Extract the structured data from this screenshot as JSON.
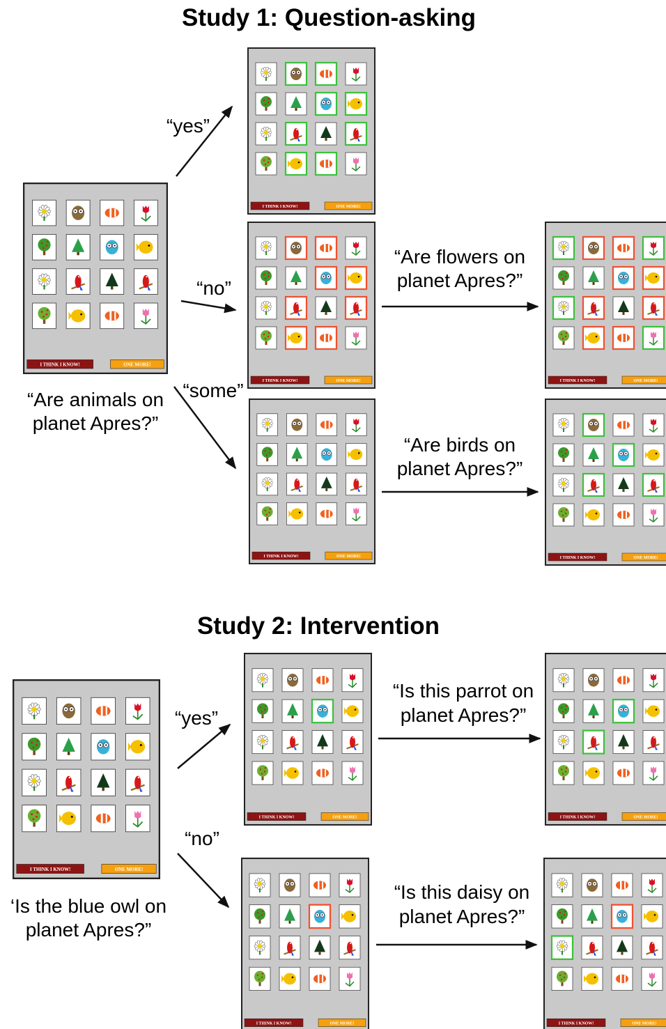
{
  "study1": {
    "title": "Study 1: Question-asking",
    "question": [
      "“Are animals on",
      "planet Apres?”"
    ],
    "branches": [
      "“yes”",
      "“no”",
      "“some”"
    ],
    "followups": [
      [
        "“Are flowers on",
        "planet Apres?”"
      ],
      [
        "“Are birds on",
        "planet Apres?”"
      ]
    ]
  },
  "study2": {
    "title": "Study 2: Intervention",
    "question": [
      "‘Is the blue owl on",
      "planet Apres?”"
    ],
    "branches": [
      "“yes”",
      "“no”"
    ],
    "followups": [
      [
        "“Is this parrot on",
        "planet Apres?”"
      ],
      [
        "“Is this daisy on",
        "planet Apres?”"
      ]
    ]
  },
  "screens": [
    {
      "button_left": "I THINK I KNOW!",
      "button_right": "ONE MORE!"
    },
    {
      "button_left": "I THINK I KNOW!",
      "button_right": "ONE MORE!"
    },
    {
      "button_left": "I THINK I KNOW!",
      "button_right": "ONE MORE!"
    },
    {
      "button_left": "I THINK I KNOW!",
      "button_right": "ONE MORE!"
    },
    {
      "button_left": "I THINK I KNOW!",
      "button_right": "ONE MORE!"
    },
    {
      "button_left": "I THINK I KNOW!",
      "button_right": "ONE MORE!"
    },
    {
      "button_left": "I THINK I KNOW!",
      "button_right": "ONE MORE!"
    },
    {
      "button_left": "I THINK I KNOW!",
      "button_right": "ONE MORE!"
    },
    {
      "button_left": "I THINK I KNOW!",
      "button_right": "ONE MORE!"
    },
    {
      "button_left": "I THINK I KNOW!",
      "button_right": "ONE MORE!"
    },
    {
      "button_left": "I THINK I KNOW!",
      "button_right": "ONE MORE!"
    }
  ]
}
